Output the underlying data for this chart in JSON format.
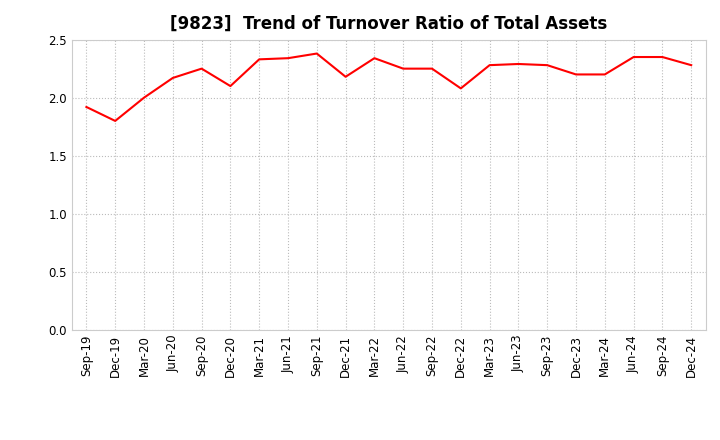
{
  "title": "[9823]  Trend of Turnover Ratio of Total Assets",
  "x_labels": [
    "Sep-19",
    "Dec-19",
    "Mar-20",
    "Jun-20",
    "Sep-20",
    "Dec-20",
    "Mar-21",
    "Jun-21",
    "Sep-21",
    "Dec-21",
    "Mar-22",
    "Jun-22",
    "Sep-22",
    "Dec-22",
    "Mar-23",
    "Jun-23",
    "Sep-23",
    "Dec-23",
    "Mar-24",
    "Jun-24",
    "Sep-24",
    "Dec-24"
  ],
  "y_values": [
    1.92,
    1.8,
    2.0,
    2.17,
    2.25,
    2.1,
    2.33,
    2.34,
    2.38,
    2.18,
    2.34,
    2.25,
    2.25,
    2.08,
    2.28,
    2.29,
    2.28,
    2.2,
    2.2,
    2.35,
    2.35,
    2.28
  ],
  "line_color": "#FF0000",
  "line_width": 1.5,
  "ylim": [
    0.0,
    2.5
  ],
  "yticks": [
    0.0,
    0.5,
    1.0,
    1.5,
    2.0,
    2.5
  ],
  "background_color": "#FFFFFF",
  "grid_color": "#BBBBBB",
  "title_fontsize": 12,
  "tick_fontsize": 8.5
}
